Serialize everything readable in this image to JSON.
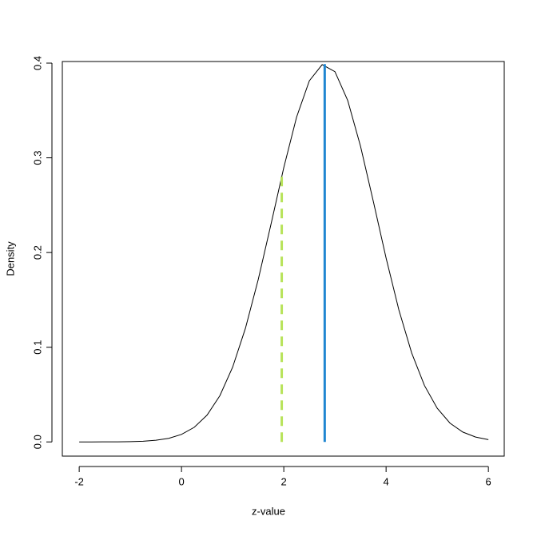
{
  "chart_data": {
    "type": "line",
    "xlabel": "z-value",
    "ylabel": "Density",
    "x": [
      -2,
      -1.75,
      -1.5,
      -1.25,
      -1,
      -0.75,
      -0.5,
      -0.25,
      0,
      0.25,
      0.5,
      0.75,
      1,
      1.25,
      1.5,
      1.75,
      2,
      2.25,
      2.5,
      2.75,
      3,
      3.25,
      3.5,
      3.75,
      4,
      4.25,
      4.5,
      4.75,
      5,
      5.25,
      5.5,
      5.75,
      6
    ],
    "series": [
      {
        "color": "#000000",
        "values": [
          0,
          0,
          4e-05,
          0.00011,
          0.00029,
          0.00073,
          0.00172,
          0.00381,
          0.00792,
          0.01545,
          0.02833,
          0.04879,
          0.07895,
          0.12,
          0.1714,
          0.2299,
          0.2897,
          0.343,
          0.3814,
          0.3984,
          0.391,
          0.3605,
          0.3123,
          0.2541,
          0.1942,
          0.1394,
          0.094,
          0.0596,
          0.0355,
          0.0198,
          0.0104,
          0.00514,
          0.00238
        ]
      }
    ],
    "vlines": [
      {
        "x": 1.96,
        "y": 0.28,
        "color": "#b8e35a",
        "dashed": true
      },
      {
        "x": 2.8,
        "y": 0.399,
        "color": "#1f86d1",
        "dashed": false
      }
    ],
    "xlim": [
      -2.33,
      6.31
    ],
    "ylim": [
      -0.015,
      0.4017
    ],
    "xticks": [
      -2,
      0,
      2,
      4,
      6
    ],
    "yticks": [
      {
        "value": 0,
        "label": "0.0"
      },
      0.1,
      0.2,
      0.3,
      0.4
    ]
  }
}
